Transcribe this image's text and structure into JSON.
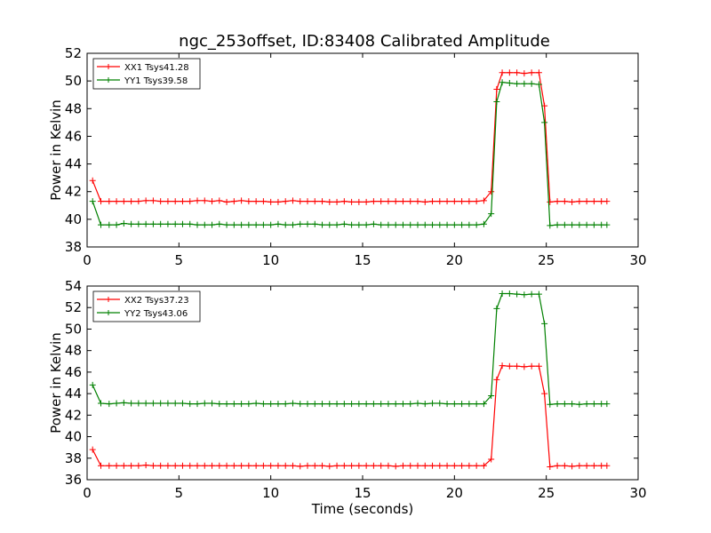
{
  "figure": {
    "title": "ngc_253offset, ID:83408 Calibrated Amplitude"
  },
  "chart_data": [
    {
      "type": "line",
      "title": "ngc_253offset, ID:83408 Calibrated Amplitude",
      "xlabel": "",
      "ylabel": "Power in Kelvin",
      "xlim": [
        0,
        30
      ],
      "ylim": [
        38,
        52
      ],
      "xticks": [
        0,
        5,
        10,
        15,
        20,
        25,
        30
      ],
      "yticks": [
        38,
        40,
        42,
        44,
        46,
        48,
        50,
        52
      ],
      "grid": false,
      "legend_position": "top-left",
      "x": [
        0.3,
        0.75,
        1.2,
        1.6,
        2.0,
        2.4,
        2.8,
        3.2,
        3.6,
        4.0,
        4.4,
        4.8,
        5.2,
        5.6,
        6.0,
        6.4,
        6.8,
        7.2,
        7.6,
        8.0,
        8.4,
        8.8,
        9.2,
        9.6,
        10.0,
        10.4,
        10.8,
        11.2,
        11.6,
        12.0,
        12.4,
        12.8,
        13.2,
        13.6,
        14.0,
        14.4,
        14.8,
        15.2,
        15.6,
        16.0,
        16.4,
        16.8,
        17.2,
        17.6,
        18.0,
        18.4,
        18.8,
        19.2,
        19.6,
        20.0,
        20.4,
        20.8,
        21.2,
        21.6,
        22.0,
        22.3,
        22.6,
        23.0,
        23.4,
        23.8,
        24.2,
        24.6,
        24.9,
        25.2,
        25.6,
        26.0,
        26.4,
        26.8,
        27.2,
        27.6,
        28.0,
        28.3
      ],
      "series": [
        {
          "name": "XX1 Tsys41.28",
          "color": "#ff0000",
          "values": [
            42.8,
            41.3,
            41.3,
            41.3,
            41.3,
            41.3,
            41.3,
            41.35,
            41.35,
            41.3,
            41.3,
            41.3,
            41.3,
            41.3,
            41.35,
            41.35,
            41.3,
            41.35,
            41.25,
            41.3,
            41.35,
            41.3,
            41.3,
            41.3,
            41.25,
            41.25,
            41.3,
            41.35,
            41.3,
            41.3,
            41.3,
            41.3,
            41.25,
            41.25,
            41.3,
            41.25,
            41.25,
            41.25,
            41.3,
            41.3,
            41.3,
            41.3,
            41.3,
            41.3,
            41.3,
            41.25,
            41.3,
            41.3,
            41.3,
            41.3,
            41.3,
            41.3,
            41.3,
            41.35,
            42.0,
            49.4,
            50.6,
            50.6,
            50.6,
            50.55,
            50.6,
            50.6,
            48.2,
            41.25,
            41.3,
            41.3,
            41.25,
            41.3,
            41.3,
            41.3,
            41.3,
            41.3
          ]
        },
        {
          "name": "YY1 Tsys39.58",
          "color": "#008000",
          "values": [
            41.3,
            39.6,
            39.6,
            39.6,
            39.7,
            39.65,
            39.65,
            39.65,
            39.65,
            39.65,
            39.65,
            39.65,
            39.65,
            39.65,
            39.6,
            39.6,
            39.6,
            39.65,
            39.6,
            39.6,
            39.6,
            39.6,
            39.6,
            39.6,
            39.6,
            39.65,
            39.6,
            39.6,
            39.65,
            39.65,
            39.65,
            39.6,
            39.6,
            39.6,
            39.65,
            39.6,
            39.6,
            39.6,
            39.65,
            39.6,
            39.6,
            39.6,
            39.6,
            39.6,
            39.6,
            39.6,
            39.6,
            39.6,
            39.6,
            39.6,
            39.6,
            39.6,
            39.6,
            39.65,
            40.4,
            48.5,
            49.9,
            49.85,
            49.8,
            49.8,
            49.8,
            49.75,
            47.0,
            39.55,
            39.6,
            39.6,
            39.6,
            39.6,
            39.6,
            39.6,
            39.6,
            39.6
          ]
        }
      ]
    },
    {
      "type": "line",
      "title": "",
      "xlabel": "Time (seconds)",
      "ylabel": "Power in Kelvin",
      "xlim": [
        0,
        30
      ],
      "ylim": [
        36,
        54
      ],
      "xticks": [
        0,
        5,
        10,
        15,
        20,
        25,
        30
      ],
      "yticks": [
        36,
        38,
        40,
        42,
        44,
        46,
        48,
        50,
        52,
        54
      ],
      "grid": false,
      "legend_position": "top-left",
      "x": [
        0.3,
        0.75,
        1.2,
        1.6,
        2.0,
        2.4,
        2.8,
        3.2,
        3.6,
        4.0,
        4.4,
        4.8,
        5.2,
        5.6,
        6.0,
        6.4,
        6.8,
        7.2,
        7.6,
        8.0,
        8.4,
        8.8,
        9.2,
        9.6,
        10.0,
        10.4,
        10.8,
        11.2,
        11.6,
        12.0,
        12.4,
        12.8,
        13.2,
        13.6,
        14.0,
        14.4,
        14.8,
        15.2,
        15.6,
        16.0,
        16.4,
        16.8,
        17.2,
        17.6,
        18.0,
        18.4,
        18.8,
        19.2,
        19.6,
        20.0,
        20.4,
        20.8,
        21.2,
        21.6,
        22.0,
        22.3,
        22.6,
        23.0,
        23.4,
        23.8,
        24.2,
        24.6,
        24.9,
        25.2,
        25.6,
        26.0,
        26.4,
        26.8,
        27.2,
        27.6,
        28.0,
        28.3
      ],
      "series": [
        {
          "name": "XX2 Tsys37.23",
          "color": "#ff0000",
          "values": [
            38.8,
            37.3,
            37.3,
            37.3,
            37.3,
            37.3,
            37.3,
            37.35,
            37.3,
            37.3,
            37.3,
            37.3,
            37.3,
            37.3,
            37.3,
            37.3,
            37.3,
            37.3,
            37.3,
            37.3,
            37.3,
            37.3,
            37.3,
            37.3,
            37.3,
            37.3,
            37.3,
            37.3,
            37.25,
            37.3,
            37.3,
            37.3,
            37.25,
            37.3,
            37.3,
            37.3,
            37.3,
            37.3,
            37.3,
            37.3,
            37.3,
            37.25,
            37.3,
            37.3,
            37.3,
            37.3,
            37.3,
            37.3,
            37.3,
            37.3,
            37.3,
            37.3,
            37.3,
            37.3,
            37.9,
            45.3,
            46.6,
            46.55,
            46.55,
            46.5,
            46.55,
            46.55,
            44.0,
            37.2,
            37.3,
            37.3,
            37.25,
            37.3,
            37.3,
            37.3,
            37.3,
            37.3
          ]
        },
        {
          "name": "YY2 Tsys43.06",
          "color": "#008000",
          "values": [
            44.8,
            43.1,
            43.05,
            43.1,
            43.15,
            43.1,
            43.1,
            43.1,
            43.1,
            43.1,
            43.1,
            43.1,
            43.1,
            43.05,
            43.05,
            43.1,
            43.1,
            43.05,
            43.05,
            43.05,
            43.05,
            43.05,
            43.1,
            43.05,
            43.05,
            43.05,
            43.05,
            43.1,
            43.05,
            43.05,
            43.05,
            43.05,
            43.05,
            43.05,
            43.05,
            43.05,
            43.05,
            43.05,
            43.05,
            43.05,
            43.05,
            43.05,
            43.05,
            43.05,
            43.1,
            43.05,
            43.1,
            43.1,
            43.05,
            43.05,
            43.05,
            43.05,
            43.05,
            43.05,
            43.8,
            51.9,
            53.3,
            53.3,
            53.25,
            53.2,
            53.25,
            53.25,
            50.5,
            43.0,
            43.05,
            43.05,
            43.05,
            43.0,
            43.05,
            43.05,
            43.05,
            43.05
          ]
        }
      ]
    }
  ]
}
